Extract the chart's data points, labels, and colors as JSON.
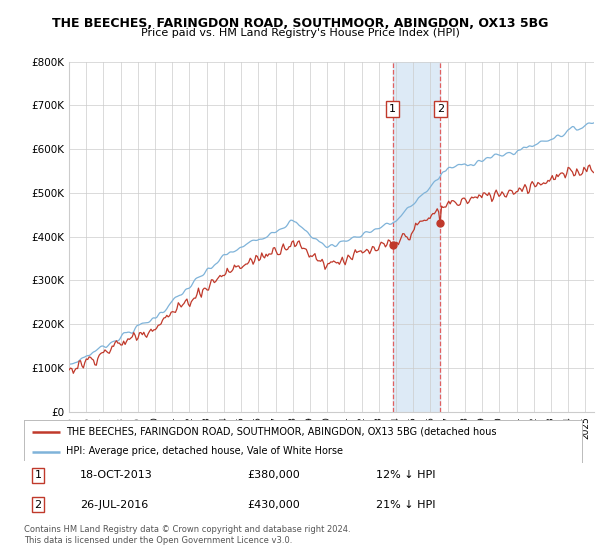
{
  "title1": "THE BEECHES, FARINGDON ROAD, SOUTHMOOR, ABINGDON, OX13 5BG",
  "title2": "Price paid vs. HM Land Registry's House Price Index (HPI)",
  "ylabel_ticks": [
    "£0",
    "£100K",
    "£200K",
    "£300K",
    "£400K",
    "£500K",
    "£600K",
    "£700K",
    "£800K"
  ],
  "ytick_vals": [
    0,
    100000,
    200000,
    300000,
    400000,
    500000,
    600000,
    700000,
    800000
  ],
  "ylim": [
    0,
    800000
  ],
  "xlim_start": 1995.0,
  "xlim_end": 2025.5,
  "hpi_color": "#7fb3d9",
  "price_color": "#c0392b",
  "marker1_x": 2013.8,
  "marker1_y": 380000,
  "marker1_label": "1",
  "marker1_date": "18-OCT-2013",
  "marker1_price": "£380,000",
  "marker1_hpi": "12% ↓ HPI",
  "marker2_x": 2016.57,
  "marker2_y": 430000,
  "marker2_label": "2",
  "marker2_date": "26-JUL-2016",
  "marker2_price": "£430,000",
  "marker2_hpi": "21% ↓ HPI",
  "legend_line1": "THE BEECHES, FARINGDON ROAD, SOUTHMOOR, ABINGDON, OX13 5BG (detached hous",
  "legend_line2": "HPI: Average price, detached house, Vale of White Horse",
  "footnote": "Contains HM Land Registry data © Crown copyright and database right 2024.\nThis data is licensed under the Open Government Licence v3.0.",
  "background_color": "#ffffff",
  "grid_color": "#cccccc",
  "span_color": "#ddeaf6",
  "vline_color": "#e06060"
}
